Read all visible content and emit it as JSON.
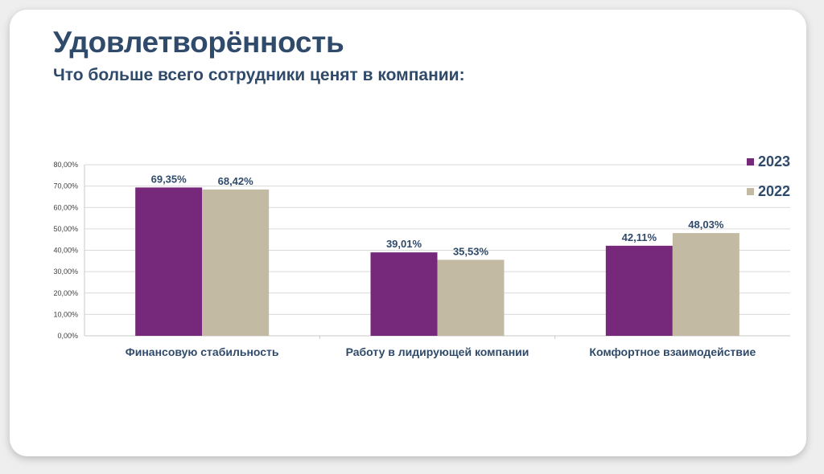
{
  "header": {
    "title": "Удовлетворённость",
    "subtitle": "Что больше всего сотрудники ценят в компании:"
  },
  "colors": {
    "2023": "#76297a",
    "2022": "#c3baa3",
    "text": "#2f4a6a",
    "grid": "#d9d9d9"
  },
  "chart_data": {
    "type": "bar",
    "title": "Что больше всего сотрудники ценят в компании:",
    "categories": [
      "Финансовую стабильность",
      "Работу в лидирующей компании",
      "Комфортное взаимодействие"
    ],
    "series": [
      {
        "name": "2023",
        "values": [
          69.35,
          39.01,
          42.11
        ],
        "labels": [
          "69,35%",
          "39,01%",
          "42,11%"
        ]
      },
      {
        "name": "2022",
        "values": [
          68.42,
          35.53,
          48.03
        ],
        "labels": [
          "68,42%",
          "35,53%",
          "48,03%"
        ]
      }
    ],
    "yticks": [
      "0,00%",
      "10,00%",
      "20,00%",
      "30,00%",
      "40,00%",
      "50,00%",
      "60,00%",
      "70,00%",
      "80,00%"
    ],
    "ylim": [
      0,
      80
    ],
    "xlabel": "",
    "ylabel": "",
    "grid": true,
    "legend": "top-right"
  }
}
